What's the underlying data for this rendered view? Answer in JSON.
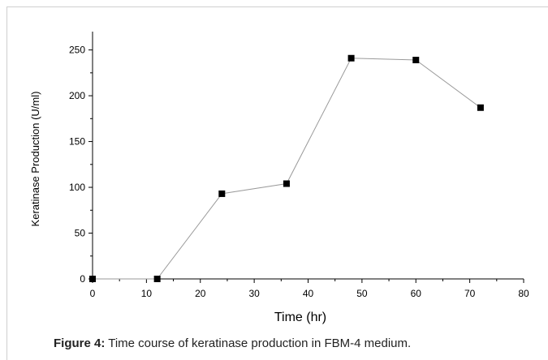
{
  "chart_data": {
    "type": "line",
    "x": [
      0,
      12,
      24,
      36,
      48,
      60,
      72
    ],
    "series": [
      {
        "values": [
          0,
          0,
          93,
          104,
          241,
          239,
          187
        ]
      }
    ],
    "xlabel": "Time (hr)",
    "ylabel": "Keratinase Production (U/ml)",
    "xlim": [
      0,
      80
    ],
    "ylim": [
      0,
      270
    ],
    "xticks": [
      0,
      10,
      20,
      30,
      40,
      50,
      60,
      70,
      80
    ],
    "yticks": [
      0,
      50,
      100,
      150,
      200,
      250
    ],
    "grid": false,
    "marker": "square",
    "line_color": "#9a9a9a",
    "marker_color": "#000000"
  },
  "caption": {
    "label": "Figure 4:",
    "text": " Time course of keratinase production in FBM-4 medium."
  }
}
